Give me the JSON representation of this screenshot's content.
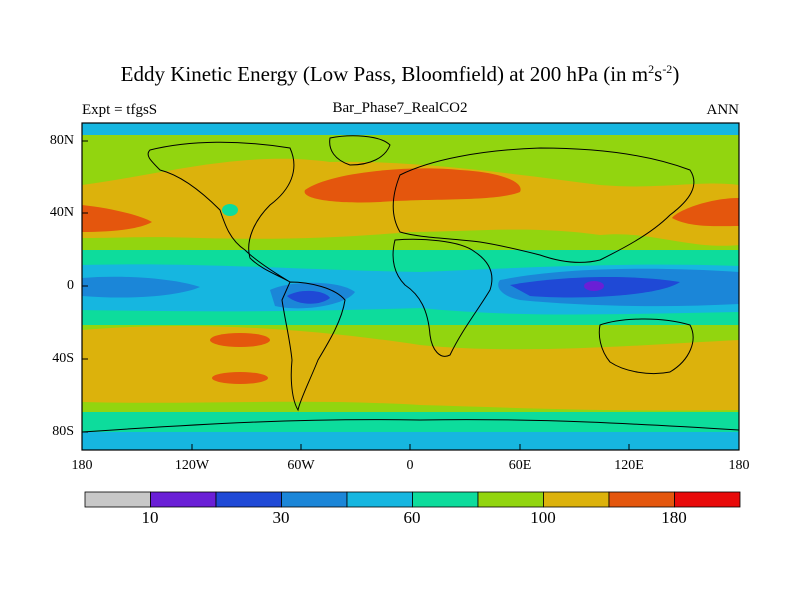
{
  "title": {
    "text": "Eddy Kinetic Energy (Low Pass, Bloomfield) at 200 hPa (in m",
    "sup1": "2",
    "mid": "s",
    "sup2": "-2",
    "end": ")"
  },
  "subtitle_left": "Expt = tfgsS",
  "subtitle_center": "Bar_Phase7_RealCO2",
  "subtitle_right": "ANN",
  "colors": {
    "gray": "#c8c8c8",
    "violet": "#6a1fd6",
    "blue": "#1f49d6",
    "mid_blue": "#1b86d8",
    "cyan": "#16b6e0",
    "teal": "#0ddc9c",
    "yellow_green": "#92d50f",
    "gold": "#dcb20c",
    "orange": "#e4560d",
    "red": "#e80a0a"
  },
  "chart_data": {
    "type": "heatmap",
    "projection": "cylindrical equidistant",
    "x_ticks": [
      "180",
      "120W",
      "60W",
      "0",
      "60E",
      "120E",
      "180"
    ],
    "y_ticks": [
      "80N",
      "40N",
      "0",
      "40S",
      "80S"
    ],
    "colorbar": {
      "colors": [
        "#c8c8c8",
        "#6a1fd6",
        "#1f49d6",
        "#1b86d8",
        "#16b6e0",
        "#0ddc9c",
        "#92d50f",
        "#dcb20c",
        "#e4560d",
        "#e80a0a"
      ],
      "labels": [
        "10",
        "30",
        "60",
        "100",
        "180"
      ]
    }
  }
}
